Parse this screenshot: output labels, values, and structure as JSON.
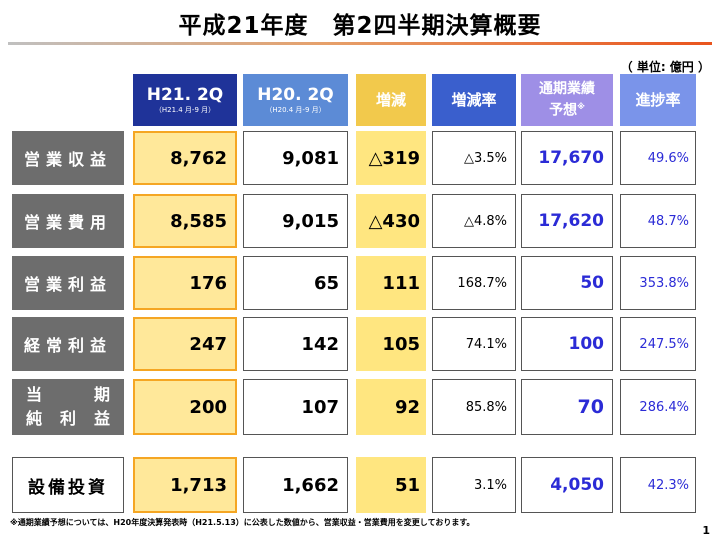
{
  "title": "平成21年度　第2四半期決算概要",
  "unit": "（ 単位: 億円 ）",
  "colors": {
    "header_current": "#1f3399",
    "header_prev": "#5c8bd6",
    "header_diff": "#f2c94c",
    "header_rate": "#3a5fcd",
    "header_forecast": "#9e8fe6",
    "header_progress": "#7a94ea",
    "label_bg": "#6d6d6d",
    "forecast_text": "#2b2bd6"
  },
  "headers": {
    "current": {
      "main": "H21. 2Q",
      "sub": "（H21.4 月-9 月）"
    },
    "prev": {
      "main": "H20. 2Q",
      "sub": "（H20.4 月-9 月）"
    },
    "diff": "増減",
    "rate": "増減率",
    "forecast": {
      "line1": "通期業績",
      "line2": "予想",
      "mark": "※"
    },
    "progress": "進捗率"
  },
  "rows": [
    {
      "label": "営業収益",
      "current": "8,762",
      "prev": "9,081",
      "diff": "△319",
      "rate": "△3.5%",
      "forecast": "17,670",
      "progress": "49.6%"
    },
    {
      "label": "営業費用",
      "current": "8,585",
      "prev": "9,015",
      "diff": "△430",
      "rate": "△4.8%",
      "forecast": "17,620",
      "progress": "48.7%"
    },
    {
      "label": "営業利益",
      "current": "176",
      "prev": "65",
      "diff": "111",
      "rate": "168.7%",
      "forecast": "50",
      "progress": "353.8%"
    },
    {
      "label": "経常利益",
      "current": "247",
      "prev": "142",
      "diff": "105",
      "rate": "74.1%",
      "forecast": "100",
      "progress": "247.5%"
    },
    {
      "label_line1": [
        "当",
        "期"
      ],
      "label_line2": [
        "純",
        "利",
        "益"
      ],
      "current": "200",
      "prev": "107",
      "diff": "92",
      "rate": "85.8%",
      "forecast": "70",
      "progress": "286.4%"
    },
    {
      "label": "設備投資",
      "current": "1,713",
      "prev": "1,662",
      "diff": "51",
      "rate": "3.1%",
      "forecast": "4,050",
      "progress": "42.3%"
    }
  ],
  "footnote": "※通期業績予想については、H20年度決算発表時（H21.5.13）に公表した数値から、営業収益・営業費用を変更しております。",
  "page_number": "1"
}
